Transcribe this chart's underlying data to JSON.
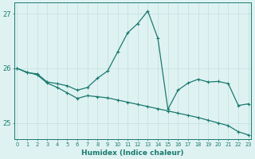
{
  "line1_x": [
    0,
    1,
    2,
    3,
    4,
    5,
    6,
    7,
    8,
    9,
    10,
    11,
    12,
    13,
    14,
    15,
    16,
    17,
    18,
    19,
    20,
    21,
    22,
    23
  ],
  "line1_y": [
    26.0,
    25.92,
    25.9,
    25.75,
    25.72,
    25.68,
    25.6,
    25.65,
    25.82,
    25.95,
    26.3,
    26.65,
    26.82,
    27.05,
    26.55,
    25.25,
    25.6,
    25.73,
    25.8,
    25.75,
    25.76,
    25.72,
    25.32,
    25.35
  ],
  "line2_x": [
    0,
    1,
    2,
    3,
    4,
    5,
    6,
    7,
    8,
    9,
    10,
    11,
    12,
    13,
    14,
    15,
    16,
    17,
    18,
    19,
    20,
    21,
    22,
    23
  ],
  "line2_y": [
    26.0,
    25.93,
    25.88,
    25.73,
    25.65,
    25.55,
    25.45,
    25.5,
    25.48,
    25.46,
    25.42,
    25.38,
    25.34,
    25.3,
    25.26,
    25.22,
    25.18,
    25.14,
    25.1,
    25.05,
    25.0,
    24.95,
    24.84,
    24.78
  ],
  "line_color": "#1a7a6e",
  "bg_color": "#dff2f2",
  "grid_color": "#c0dede",
  "xlabel": "Humidex (Indice chaleur)",
  "ylim": [
    24.7,
    27.2
  ],
  "xlim": [
    -0.3,
    23.3
  ],
  "yticks": [
    25,
    26,
    27
  ],
  "xticks": [
    0,
    1,
    2,
    3,
    4,
    5,
    6,
    7,
    8,
    9,
    10,
    11,
    12,
    13,
    14,
    15,
    16,
    17,
    18,
    19,
    20,
    21,
    22,
    23
  ]
}
